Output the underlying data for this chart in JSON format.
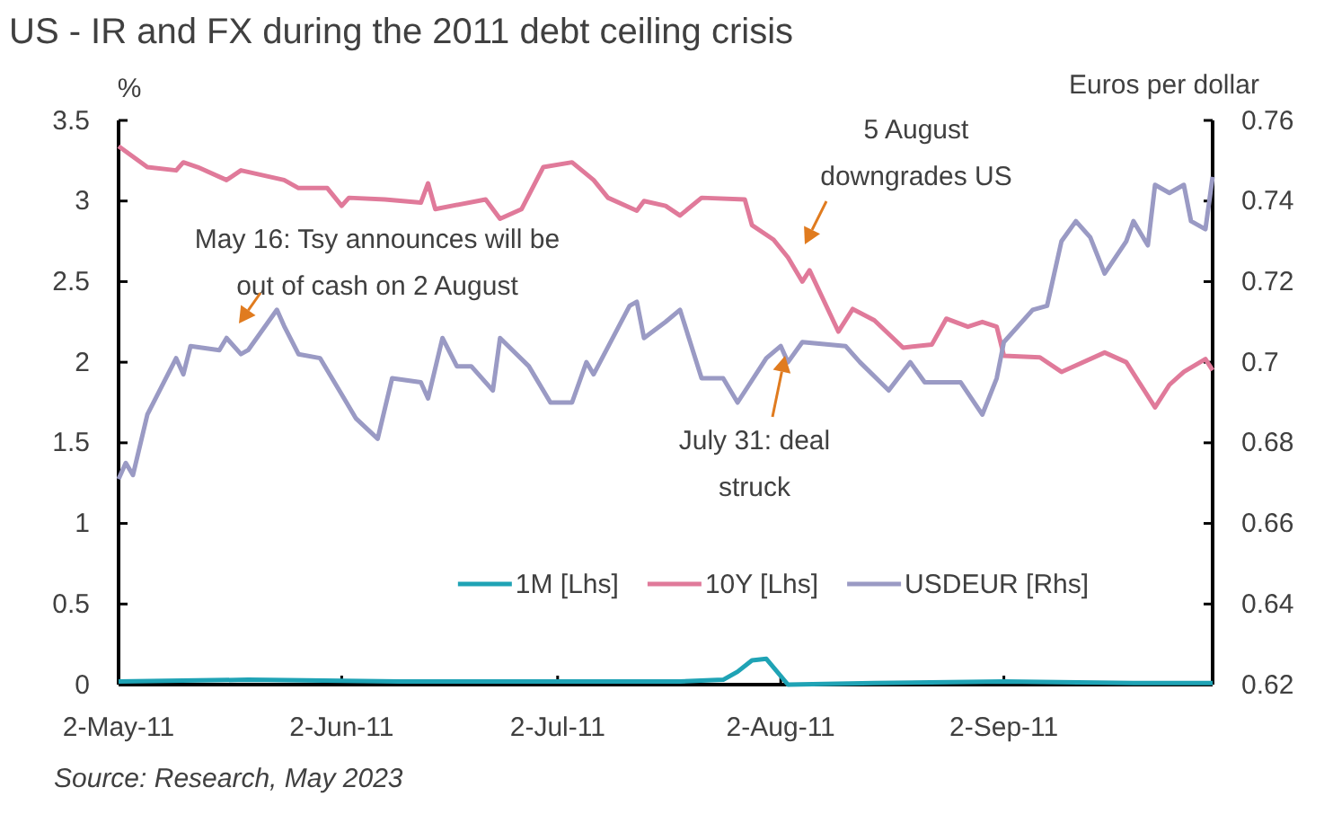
{
  "chart_data": {
    "type": "line",
    "title": "US - IR and FX during the 2011 debt ceiling crisis",
    "ylabel": "%",
    "y2label": "Euros per dollar",
    "xlim": [
      "2011-05-02",
      "2011-10-01"
    ],
    "xticks": [
      {
        "value": "2011-05-02",
        "label": "2-May-11"
      },
      {
        "value": "2011-06-02",
        "label": "2-Jun-11"
      },
      {
        "value": "2011-07-02",
        "label": "2-Jul-11"
      },
      {
        "value": "2011-08-02",
        "label": "2-Aug-11"
      },
      {
        "value": "2011-09-02",
        "label": "2-Sep-11"
      }
    ],
    "ylim": [
      0,
      3.5
    ],
    "yticks": [
      0,
      0.5,
      1,
      1.5,
      2,
      2.5,
      3,
      3.5
    ],
    "y2lim": [
      0.62,
      0.76
    ],
    "y2ticks": [
      0.62,
      0.64,
      0.66,
      0.68,
      0.7,
      0.72,
      0.74,
      0.76
    ],
    "grid": false,
    "legend": "bottom",
    "marker": "none",
    "line_style": "solid",
    "series": [
      {
        "name": "1M [Lhs]",
        "color": "#1fa3b5",
        "x": [
          "2011-05-02",
          "2011-05-20",
          "2011-06-10",
          "2011-07-01",
          "2011-07-19",
          "2011-07-25",
          "2011-07-27",
          "2011-07-29",
          "2011-07-31",
          "2011-08-03",
          "2011-08-15",
          "2011-09-02",
          "2011-09-20",
          "2011-10-01"
        ],
        "values": [
          0.02,
          0.03,
          0.02,
          0.02,
          0.02,
          0.03,
          0.08,
          0.15,
          0.16,
          0.0,
          0.01,
          0.02,
          0.01,
          0.01
        ]
      },
      {
        "name": "10Y [Lhs]",
        "color": "#e07a9a",
        "x": [
          "2011-05-02",
          "2011-05-06",
          "2011-05-10",
          "2011-05-11",
          "2011-05-13",
          "2011-05-17",
          "2011-05-19",
          "2011-05-25",
          "2011-05-27",
          "2011-05-31",
          "2011-06-02",
          "2011-06-03",
          "2011-06-08",
          "2011-06-13",
          "2011-06-14",
          "2011-06-15",
          "2011-06-22",
          "2011-06-24",
          "2011-06-27",
          "2011-06-30",
          "2011-07-04",
          "2011-07-07",
          "2011-07-09",
          "2011-07-13",
          "2011-07-14",
          "2011-07-17",
          "2011-07-19",
          "2011-07-22",
          "2011-07-28",
          "2011-07-29",
          "2011-08-01",
          "2011-08-03",
          "2011-08-05",
          "2011-08-06",
          "2011-08-10",
          "2011-08-12",
          "2011-08-15",
          "2011-08-19",
          "2011-08-23",
          "2011-08-25",
          "2011-08-28",
          "2011-08-30",
          "2011-09-01",
          "2011-09-02",
          "2011-09-07",
          "2011-09-10",
          "2011-09-16",
          "2011-09-19",
          "2011-09-23",
          "2011-09-25",
          "2011-09-27",
          "2011-09-30",
          "2011-10-01"
        ],
        "values": [
          3.34,
          3.21,
          3.19,
          3.24,
          3.21,
          3.13,
          3.19,
          3.13,
          3.08,
          3.08,
          2.97,
          3.02,
          3.01,
          2.99,
          3.11,
          2.95,
          3.01,
          2.89,
          2.95,
          3.21,
          3.24,
          3.13,
          3.02,
          2.94,
          3.0,
          2.97,
          2.91,
          3.02,
          3.01,
          2.85,
          2.76,
          2.65,
          2.5,
          2.57,
          2.19,
          2.33,
          2.26,
          2.09,
          2.11,
          2.27,
          2.22,
          2.25,
          2.22,
          2.04,
          2.03,
          1.94,
          2.06,
          2.0,
          1.72,
          1.86,
          1.94,
          2.02,
          1.95
        ]
      },
      {
        "name": "USDEUR [Rhs]",
        "color": "#9a9ac4",
        "axis": "y2",
        "x": [
          "2011-05-02",
          "2011-05-03",
          "2011-05-04",
          "2011-05-06",
          "2011-05-10",
          "2011-05-11",
          "2011-05-12",
          "2011-05-16",
          "2011-05-17",
          "2011-05-19",
          "2011-05-20",
          "2011-05-24",
          "2011-05-25",
          "2011-05-27",
          "2011-05-30",
          "2011-06-02",
          "2011-06-04",
          "2011-06-07",
          "2011-06-09",
          "2011-06-13",
          "2011-06-14",
          "2011-06-16",
          "2011-06-18",
          "2011-06-20",
          "2011-06-23",
          "2011-06-24",
          "2011-06-28",
          "2011-07-01",
          "2011-07-04",
          "2011-07-06",
          "2011-07-07",
          "2011-07-12",
          "2011-07-13",
          "2011-07-14",
          "2011-07-17",
          "2011-07-19",
          "2011-07-22",
          "2011-07-25",
          "2011-07-27",
          "2011-07-31",
          "2011-08-02",
          "2011-08-03",
          "2011-08-05",
          "2011-08-11",
          "2011-08-13",
          "2011-08-17",
          "2011-08-20",
          "2011-08-22",
          "2011-08-27",
          "2011-08-30",
          "2011-09-01",
          "2011-09-02",
          "2011-09-06",
          "2011-09-08",
          "2011-09-10",
          "2011-09-12",
          "2011-09-14",
          "2011-09-16",
          "2011-09-19",
          "2011-09-20",
          "2011-09-22",
          "2011-09-23",
          "2011-09-25",
          "2011-09-27",
          "2011-09-28",
          "2011-09-30",
          "2011-10-01"
        ],
        "values": [
          0.671,
          0.675,
          0.672,
          0.687,
          0.701,
          0.697,
          0.704,
          0.703,
          0.706,
          0.702,
          0.703,
          0.713,
          0.709,
          0.702,
          0.701,
          0.692,
          0.686,
          0.681,
          0.696,
          0.695,
          0.691,
          0.706,
          0.699,
          0.699,
          0.693,
          0.706,
          0.699,
          0.69,
          0.69,
          0.7,
          0.697,
          0.714,
          0.715,
          0.706,
          0.71,
          0.713,
          0.696,
          0.696,
          0.69,
          0.701,
          0.704,
          0.7,
          0.705,
          0.704,
          0.7,
          0.693,
          0.7,
          0.695,
          0.695,
          0.687,
          0.696,
          0.705,
          0.713,
          0.714,
          0.73,
          0.735,
          0.731,
          0.722,
          0.73,
          0.735,
          0.729,
          0.744,
          0.742,
          0.744,
          0.735,
          0.733,
          0.746
        ]
      }
    ],
    "annotations": [
      "May 16: Tsy announces will be out of cash on 2 August",
      "5 August downgrades US",
      "July 31: deal struck",
      "Source: Research, May 2023"
    ]
  }
}
